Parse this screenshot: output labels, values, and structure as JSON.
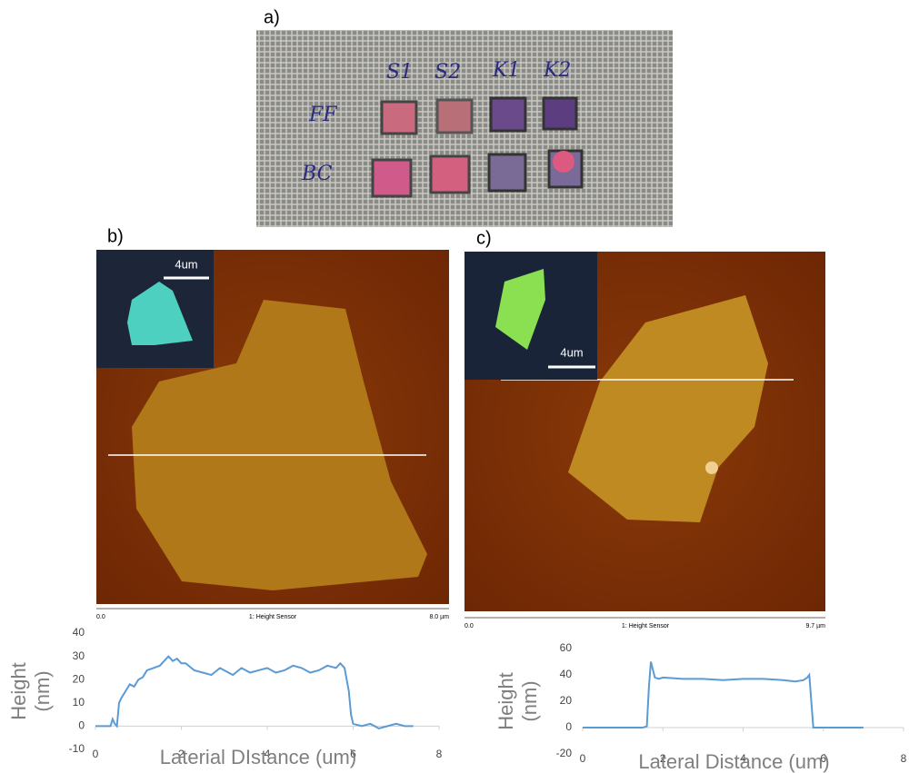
{
  "panel_labels": [
    "a)",
    "b)",
    "c)"
  ],
  "photo": {
    "rows": [
      "FF",
      "BC"
    ],
    "columns": [
      "S1",
      "S2",
      "K1",
      "K2"
    ]
  },
  "afm_b": {
    "scale_bar": "4um",
    "axis_start": "0.0",
    "axis_title": "1: Height Sensor",
    "axis_end": "8.0 µm"
  },
  "afm_c": {
    "scale_bar": "4um",
    "axis_start": "0.0",
    "axis_title": "1: Height Sensor",
    "axis_end": "9.7 µm"
  },
  "chart_data": [
    {
      "type": "line",
      "ylabel": [
        "Height",
        "(nm)"
      ],
      "xlabel": "Laterial DIstance (um)",
      "xlim": [
        0,
        8
      ],
      "xticks": [
        0,
        2,
        4,
        6,
        8
      ],
      "ylim": [
        -10,
        40
      ],
      "yticks": [
        -10,
        0,
        10,
        20,
        30,
        40
      ],
      "series": [
        {
          "color": "#5b9bd5",
          "x": [
            0,
            0.2,
            0.35,
            0.4,
            0.45,
            0.5,
            0.55,
            0.6,
            0.7,
            0.8,
            0.9,
            1.0,
            1.1,
            1.2,
            1.35,
            1.5,
            1.6,
            1.7,
            1.8,
            1.9,
            2.0,
            2.1,
            2.3,
            2.5,
            2.7,
            2.9,
            3.0,
            3.2,
            3.4,
            3.6,
            3.8,
            4.0,
            4.2,
            4.4,
            4.6,
            4.8,
            5.0,
            5.2,
            5.4,
            5.6,
            5.7,
            5.8,
            5.85,
            5.9,
            5.95,
            6.0,
            6.2,
            6.4,
            6.6,
            6.8,
            7.0,
            7.2,
            7.4
          ],
          "values": [
            0,
            0,
            0,
            3,
            1,
            0,
            10,
            12,
            15,
            18,
            17,
            20,
            21,
            24,
            25,
            26,
            28,
            30,
            28,
            29,
            27,
            27,
            24,
            23,
            22,
            25,
            24,
            22,
            25,
            23,
            24,
            25,
            23,
            24,
            26,
            25,
            23,
            24,
            26,
            25,
            27,
            25,
            20,
            15,
            5,
            1,
            0,
            1,
            -1,
            0,
            1,
            0,
            0
          ]
        }
      ]
    },
    {
      "type": "line",
      "ylabel": [
        "Height",
        "(nm)"
      ],
      "xlabel": "Lateral Distance (um)",
      "xlim": [
        0,
        8
      ],
      "xticks": [
        0,
        2,
        4,
        6,
        8
      ],
      "ylim": [
        -20,
        60
      ],
      "yticks": [
        -20,
        0,
        20,
        40,
        60
      ],
      "series": [
        {
          "color": "#5b9bd5",
          "x": [
            0,
            0.5,
            1.0,
            1.5,
            1.6,
            1.65,
            1.7,
            1.75,
            1.8,
            1.9,
            2.0,
            2.5,
            3.0,
            3.5,
            4.0,
            4.5,
            5.0,
            5.3,
            5.5,
            5.6,
            5.65,
            5.7,
            5.75,
            6.0,
            6.5,
            7.0
          ],
          "values": [
            0,
            0,
            0,
            0,
            1,
            30,
            50,
            44,
            38,
            37,
            38,
            37,
            37,
            36,
            37,
            37,
            36,
            35,
            36,
            38,
            40,
            20,
            0,
            0,
            0,
            0
          ]
        }
      ]
    }
  ]
}
